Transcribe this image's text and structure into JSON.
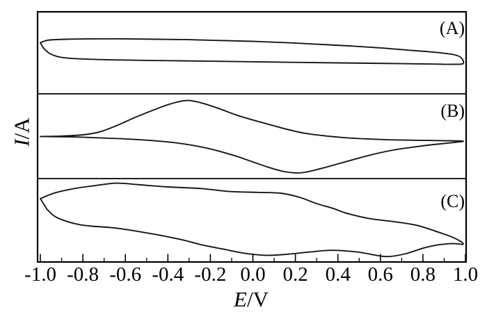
{
  "figure": {
    "type": "cyclic voltammetry figure, three stacked panels sharing one potential axis",
    "x_axis": {
      "variable": "E",
      "unit": "/V",
      "tick_labels": [
        "-1.0",
        "-0.8",
        "-0.6",
        "-0.4",
        "-0.2",
        "0.0",
        "0.2",
        "0.4",
        "0.6",
        "0.8",
        "1.0"
      ]
    },
    "y_axis": {
      "variable": "I",
      "unit": "/A",
      "tick_labels": []
    },
    "panels": [
      {
        "label": "(A)"
      },
      {
        "label": "(B)"
      },
      {
        "label": "(C)"
      }
    ]
  },
  "chart_data": {
    "type": "line",
    "subtype": "cyclic voltammograms (closed current-potential loops), 3 stacked panels",
    "title": "",
    "xlabel": "E/V",
    "ylabel": "I/A",
    "x_range": [
      -1.0,
      1.0
    ],
    "x_major_tick_step": 0.2,
    "x_minor_tick_values": [
      -0.9,
      -0.7,
      -0.5,
      -0.3,
      -0.1,
      0.1,
      0.3,
      0.5,
      0.7,
      0.9
    ],
    "y_ticks": "none (current axis unlabeled, arbitrary units)",
    "grid": false,
    "legend": "none",
    "i_convention": "loop_E_i points are [potential E in volts, current i in arbitrary units normalized to panel half-height; +1 = panel top, -1 = panel bottom]; each loop is closed",
    "panels": [
      {
        "panel_label": "(A)",
        "description": "Nearly flat featureless quasi-rectangular capacitive loop with slight downward tilt toward positive potential; sharp pinch at -1.0 V with a small downward tail, rounded hook closing the loop at +1.0 V.",
        "anodic_peak_E_V": null,
        "cathodic_peak_E_V": null,
        "loop_E_i": [
          [
            -1.0,
            0.25
          ],
          [
            -0.96,
            0.31
          ],
          [
            -0.88,
            0.33
          ],
          [
            -0.75,
            0.34
          ],
          [
            -0.6,
            0.34
          ],
          [
            -0.45,
            0.33
          ],
          [
            -0.3,
            0.32
          ],
          [
            -0.15,
            0.3
          ],
          [
            0.0,
            0.28
          ],
          [
            0.15,
            0.25
          ],
          [
            0.3,
            0.21
          ],
          [
            0.45,
            0.17
          ],
          [
            0.6,
            0.12
          ],
          [
            0.72,
            0.07
          ],
          [
            0.82,
            0.03
          ],
          [
            0.9,
            -0.01
          ],
          [
            0.95,
            -0.05
          ],
          [
            0.98,
            -0.12
          ],
          [
            0.99,
            -0.26
          ],
          [
            0.95,
            -0.28
          ],
          [
            0.85,
            -0.275
          ],
          [
            0.7,
            -0.265
          ],
          [
            0.55,
            -0.255
          ],
          [
            0.4,
            -0.245
          ],
          [
            0.25,
            -0.235
          ],
          [
            0.1,
            -0.225
          ],
          [
            -0.05,
            -0.215
          ],
          [
            -0.2,
            -0.205
          ],
          [
            -0.35,
            -0.195
          ],
          [
            -0.5,
            -0.185
          ],
          [
            -0.62,
            -0.175
          ],
          [
            -0.72,
            -0.165
          ],
          [
            -0.8,
            -0.15
          ],
          [
            -0.87,
            -0.13
          ],
          [
            -0.92,
            -0.09
          ],
          [
            -0.955,
            -0.02
          ],
          [
            -0.975,
            0.06
          ],
          [
            -0.99,
            0.15
          ]
        ]
      },
      {
        "panel_label": "(B)",
        "description": "Well-defined redox couple: broad anodic peak near -0.31 V on the upper forward branch, broad cathodic peak near +0.22 V on the lower return branch; branches merge into a single line near both vertex potentials.",
        "anodic_peak_E_V": -0.31,
        "cathodic_peak_E_V": 0.22,
        "loop_E_i": [
          [
            -1.0,
            -0.04
          ],
          [
            -0.9,
            -0.03
          ],
          [
            -0.8,
            0.0
          ],
          [
            -0.72,
            0.07
          ],
          [
            -0.64,
            0.22
          ],
          [
            -0.55,
            0.42
          ],
          [
            -0.47,
            0.58
          ],
          [
            -0.4,
            0.71
          ],
          [
            -0.34,
            0.79
          ],
          [
            -0.3,
            0.81
          ],
          [
            -0.24,
            0.75
          ],
          [
            -0.16,
            0.62
          ],
          [
            -0.08,
            0.47
          ],
          [
            0.0,
            0.35
          ],
          [
            0.08,
            0.24
          ],
          [
            0.16,
            0.13
          ],
          [
            0.24,
            0.04
          ],
          [
            0.33,
            -0.02
          ],
          [
            0.44,
            -0.07
          ],
          [
            0.55,
            -0.1
          ],
          [
            0.66,
            -0.12
          ],
          [
            0.78,
            -0.13
          ],
          [
            0.9,
            -0.14
          ],
          [
            0.99,
            -0.15
          ],
          [
            0.93,
            -0.19
          ],
          [
            0.85,
            -0.23
          ],
          [
            0.77,
            -0.28
          ],
          [
            0.66,
            -0.36
          ],
          [
            0.55,
            -0.48
          ],
          [
            0.44,
            -0.63
          ],
          [
            0.34,
            -0.77
          ],
          [
            0.26,
            -0.87
          ],
          [
            0.21,
            -0.9
          ],
          [
            0.14,
            -0.86
          ],
          [
            0.07,
            -0.76
          ],
          [
            0.0,
            -0.64
          ],
          [
            -0.1,
            -0.47
          ],
          [
            -0.22,
            -0.31
          ],
          [
            -0.36,
            -0.19
          ],
          [
            -0.52,
            -0.12
          ],
          [
            -0.68,
            -0.08
          ],
          [
            -0.84,
            -0.05
          ]
        ]
      },
      {
        "panel_label": "(C)",
        "description": "Large-hysteresis loop: sharp pinch at -1.0 V, broad anodic hump near -0.64 V, plateau until about +0.15 V then steep current decrease toward +1.0 V; return branch runs near the panel bottom with shallow undulations (dips near +0.65 V and +0.1 V, small bump near +0.4 V) before closing sharply at -1.0 V.",
        "anodic_peak_E_V": -0.64,
        "cathodic_peak_E_V": 0.65,
        "loop_E_i": [
          [
            -1.0,
            0.52
          ],
          [
            -0.93,
            0.66
          ],
          [
            -0.83,
            0.77
          ],
          [
            -0.73,
            0.84
          ],
          [
            -0.64,
            0.89
          ],
          [
            -0.53,
            0.85
          ],
          [
            -0.4,
            0.8
          ],
          [
            -0.24,
            0.76
          ],
          [
            -0.11,
            0.69
          ],
          [
            0.02,
            0.67
          ],
          [
            0.13,
            0.65
          ],
          [
            0.22,
            0.55
          ],
          [
            0.3,
            0.4
          ],
          [
            0.38,
            0.28
          ],
          [
            0.44,
            0.17
          ],
          [
            0.55,
            0.04
          ],
          [
            0.66,
            -0.03
          ],
          [
            0.77,
            -0.12
          ],
          [
            0.87,
            -0.28
          ],
          [
            0.95,
            -0.43
          ],
          [
            0.99,
            -0.57
          ],
          [
            0.94,
            -0.56
          ],
          [
            0.87,
            -0.59
          ],
          [
            0.8,
            -0.67
          ],
          [
            0.72,
            -0.8
          ],
          [
            0.64,
            -0.87
          ],
          [
            0.58,
            -0.84
          ],
          [
            0.49,
            -0.76
          ],
          [
            0.37,
            -0.72
          ],
          [
            0.27,
            -0.76
          ],
          [
            0.15,
            -0.82
          ],
          [
            0.06,
            -0.84
          ],
          [
            -0.04,
            -0.79
          ],
          [
            -0.14,
            -0.69
          ],
          [
            -0.24,
            -0.59
          ],
          [
            -0.34,
            -0.46
          ],
          [
            -0.48,
            -0.32
          ],
          [
            -0.64,
            -0.19
          ],
          [
            -0.81,
            -0.11
          ],
          [
            -0.92,
            0.06
          ],
          [
            -0.97,
            0.27
          ]
        ]
      }
    ]
  },
  "colors": {
    "background": "#ffffff",
    "curve": "#161616",
    "frame": "#000000",
    "text": "#000000"
  }
}
